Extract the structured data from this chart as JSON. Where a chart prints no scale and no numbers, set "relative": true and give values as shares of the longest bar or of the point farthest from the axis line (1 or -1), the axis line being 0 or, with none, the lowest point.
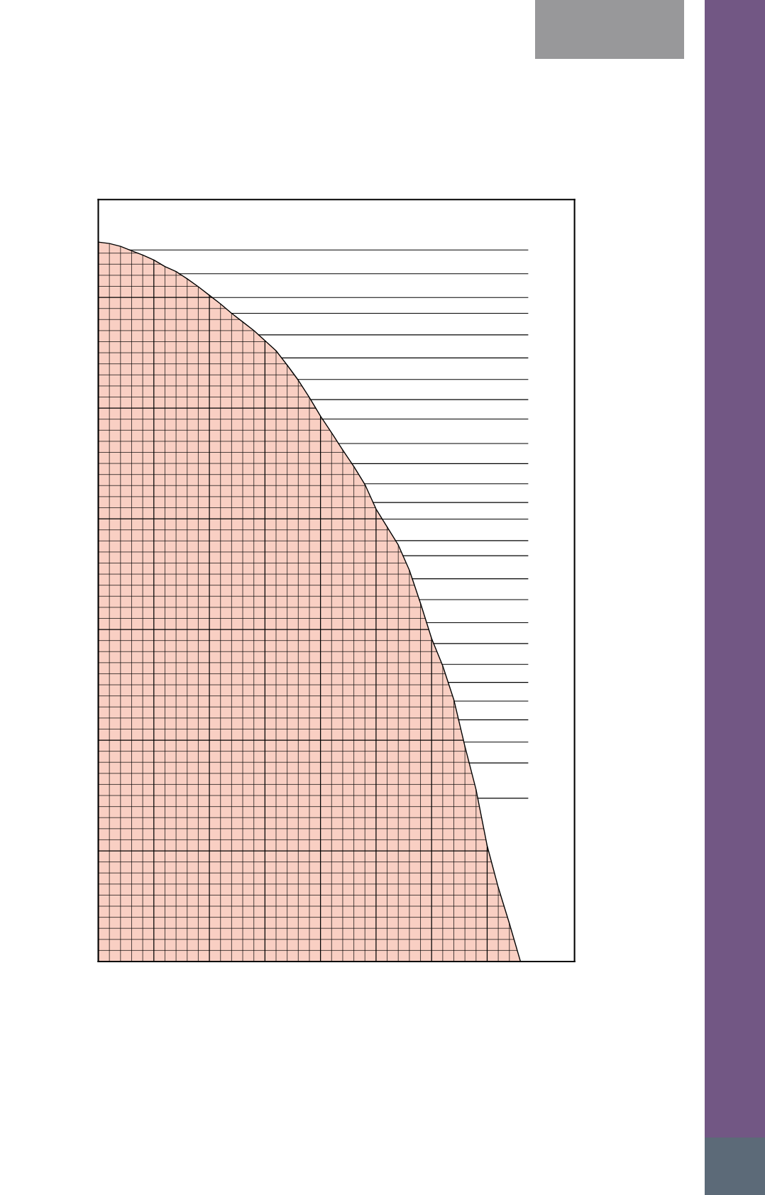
{
  "chart_data": {
    "type": "area",
    "relative": true,
    "grid": true,
    "color": "#f9cfc3",
    "categories": [
      null,
      null,
      null,
      null,
      null,
      null,
      null,
      null,
      null,
      null,
      null,
      null,
      null,
      null,
      null,
      null,
      null,
      null,
      null,
      null,
      null,
      null,
      null,
      null,
      null,
      null,
      null,
      null,
      null,
      null,
      null,
      null,
      null,
      null,
      null,
      null,
      null,
      null,
      null
    ],
    "values": [
      1.0,
      0.998,
      0.994,
      0.988,
      0.982,
      0.975,
      0.966,
      0.959,
      0.949,
      0.938,
      0.926,
      0.914,
      0.901,
      0.889,
      0.877,
      0.863,
      0.849,
      0.829,
      0.808,
      0.784,
      0.758,
      0.735,
      0.711,
      0.688,
      0.663,
      0.629,
      0.604,
      0.579,
      0.544,
      0.498,
      0.449,
      0.411,
      0.364,
      0.299,
      0.239,
      0.161,
      0.103,
      0.053,
      0.0
    ],
    "ref_lines": [
      {
        "axis": "y",
        "value": 0.989
      },
      {
        "axis": "y",
        "value": 0.956
      },
      {
        "axis": "y",
        "value": 0.923
      },
      {
        "axis": "y",
        "value": 0.901
      },
      {
        "axis": "y",
        "value": 0.871
      },
      {
        "axis": "y",
        "value": 0.839
      },
      {
        "axis": "y",
        "value": 0.809
      },
      {
        "axis": "y",
        "value": 0.781
      },
      {
        "axis": "y",
        "value": 0.754
      },
      {
        "axis": "y",
        "value": 0.72
      },
      {
        "axis": "y",
        "value": 0.692
      },
      {
        "axis": "y",
        "value": 0.664
      },
      {
        "axis": "y",
        "value": 0.638
      },
      {
        "axis": "y",
        "value": 0.615
      },
      {
        "axis": "y",
        "value": 0.585
      },
      {
        "axis": "y",
        "value": 0.564
      },
      {
        "axis": "y",
        "value": 0.532
      },
      {
        "axis": "y",
        "value": 0.503
      },
      {
        "axis": "y",
        "value": 0.471
      },
      {
        "axis": "y",
        "value": 0.442
      },
      {
        "axis": "y",
        "value": 0.413
      },
      {
        "axis": "y",
        "value": 0.388
      },
      {
        "axis": "y",
        "value": 0.362
      },
      {
        "axis": "y",
        "value": 0.336
      },
      {
        "axis": "y",
        "value": 0.305
      },
      {
        "axis": "y",
        "value": 0.276
      },
      {
        "axis": "y",
        "value": 0.227
      }
    ]
  }
}
